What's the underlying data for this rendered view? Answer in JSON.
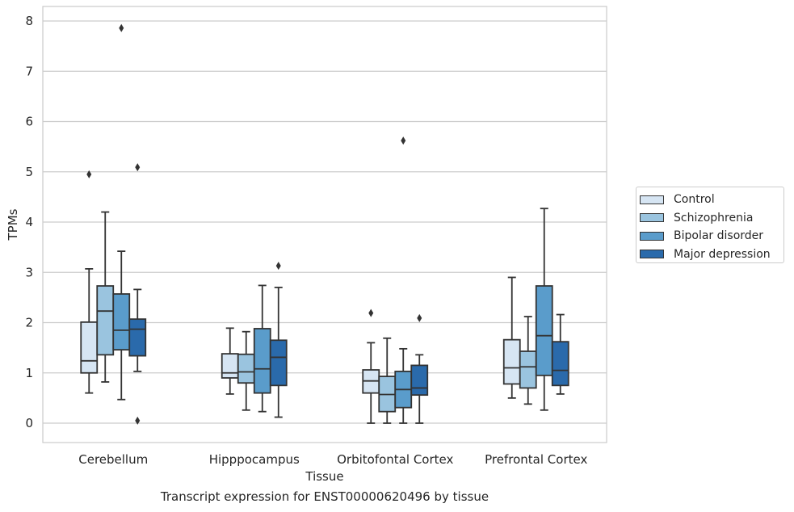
{
  "chart_data": {
    "type": "boxplot",
    "xlabel": "Tissue",
    "ylabel": "TPMs",
    "ylim": [
      -0.38,
      8.28
    ],
    "yticks": [
      0,
      1,
      2,
      3,
      4,
      5,
      6,
      7,
      8
    ],
    "categories": [
      "Cerebellum",
      "Hipppocampus",
      "Orbitofontal Cortex",
      "Prefrontal Cortex"
    ],
    "legend_position": "right",
    "grid": true,
    "series": [
      {
        "name": "Control",
        "color": "#d6e5f3",
        "boxes": [
          {
            "whislo": 0.6,
            "q1": 1.0,
            "med": 1.24,
            "q3": 2.01,
            "whishi": 3.07,
            "fliers": [
              4.95
            ]
          },
          {
            "whislo": 0.58,
            "q1": 0.9,
            "med": 1.0,
            "q3": 1.38,
            "whishi": 1.89,
            "fliers": []
          },
          {
            "whislo": 0.0,
            "q1": 0.6,
            "med": 0.84,
            "q3": 1.06,
            "whishi": 1.6,
            "fliers": [
              2.19
            ]
          },
          {
            "whislo": 0.5,
            "q1": 0.78,
            "med": 1.1,
            "q3": 1.66,
            "whishi": 2.9,
            "fliers": []
          }
        ]
      },
      {
        "name": "Schizophrenia",
        "color": "#9ac4df",
        "boxes": [
          {
            "whislo": 0.82,
            "q1": 1.36,
            "med": 2.23,
            "q3": 2.73,
            "whishi": 4.2,
            "fliers": []
          },
          {
            "whislo": 0.26,
            "q1": 0.8,
            "med": 1.02,
            "q3": 1.37,
            "whishi": 1.82,
            "fliers": []
          },
          {
            "whislo": 0.0,
            "q1": 0.23,
            "med": 0.57,
            "q3": 0.93,
            "whishi": 1.69,
            "fliers": []
          },
          {
            "whislo": 0.38,
            "q1": 0.7,
            "med": 1.12,
            "q3": 1.43,
            "whishi": 2.12,
            "fliers": []
          }
        ]
      },
      {
        "name": "Bipolar disorder",
        "color": "#5a9ccb",
        "boxes": [
          {
            "whislo": 0.47,
            "q1": 1.46,
            "med": 1.85,
            "q3": 2.57,
            "whishi": 3.42,
            "fliers": [
              7.86
            ]
          },
          {
            "whislo": 0.23,
            "q1": 0.6,
            "med": 1.08,
            "q3": 1.88,
            "whishi": 2.74,
            "fliers": []
          },
          {
            "whislo": 0.0,
            "q1": 0.31,
            "med": 0.67,
            "q3": 1.03,
            "whishi": 1.48,
            "fliers": [
              5.62
            ]
          },
          {
            "whislo": 0.26,
            "q1": 0.95,
            "med": 1.74,
            "q3": 2.73,
            "whishi": 4.27,
            "fliers": []
          }
        ]
      },
      {
        "name": "Major depression",
        "color": "#2a6aab",
        "boxes": [
          {
            "whislo": 1.03,
            "q1": 1.34,
            "med": 1.87,
            "q3": 2.07,
            "whishi": 2.66,
            "fliers": [
              5.09,
              0.05
            ]
          },
          {
            "whislo": 0.12,
            "q1": 0.75,
            "med": 1.31,
            "q3": 1.65,
            "whishi": 2.7,
            "fliers": [
              3.13
            ]
          },
          {
            "whislo": 0.0,
            "q1": 0.56,
            "med": 0.7,
            "q3": 1.15,
            "whishi": 1.36,
            "fliers": [
              2.09
            ]
          },
          {
            "whislo": 0.58,
            "q1": 0.75,
            "med": 1.05,
            "q3": 1.62,
            "whishi": 2.16,
            "fliers": []
          }
        ]
      }
    ]
  },
  "caption": "Transcript expression for ENST00000620496 by tissue"
}
